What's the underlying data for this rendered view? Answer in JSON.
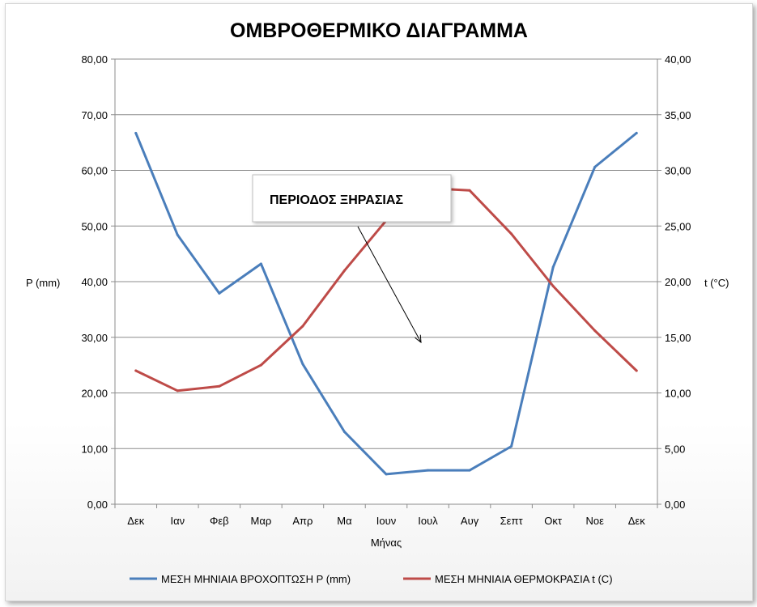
{
  "chart_data": {
    "type": "line",
    "title": "ΟΜΒΡΟΘΕΡΜΙΚΟ ΔΙΑΓΡΑΜΜΑ",
    "xlabel": "Μήνας",
    "ylabel_left": "P (mm)",
    "ylabel_right": "t (°C)",
    "categories": [
      "Δεκ",
      "Ιαν",
      "Φεβ",
      "Μαρ",
      "Απρ",
      "Μα",
      "Ιουν",
      "Ιουλ",
      "Αυγ",
      "Σεπτ",
      "Οκτ",
      "Νοε",
      "Δεκ"
    ],
    "y_left": {
      "min": 0,
      "max": 80,
      "step": 10,
      "tick_labels": [
        "0,00",
        "10,00",
        "20,00",
        "30,00",
        "40,00",
        "50,00",
        "60,00",
        "70,00",
        "80,00"
      ]
    },
    "y_right": {
      "min": 0,
      "max": 40,
      "step": 5,
      "tick_labels": [
        "0,00",
        "5,00",
        "10,00",
        "15,00",
        "20,00",
        "25,00",
        "30,00",
        "35,00",
        "40,00"
      ]
    },
    "grid": true,
    "legend_position": "bottom",
    "series": [
      {
        "name": "ΜΕΣΗ ΜΗΝΙΑΙΑ ΒΡΟΧΟΠΤΩΣΗ P (mm)",
        "axis": "left",
        "color": "#4a7ebb",
        "values": [
          66.7,
          48.4,
          37.9,
          43.2,
          25.2,
          13.0,
          5.4,
          6.1,
          6.1,
          10.4,
          42.6,
          60.6,
          66.7
        ]
      },
      {
        "name": "ΜΕΣΗ ΜΗΝΙΑΙΑ ΘΕΡΜΟΚΡΑΣΙΑ t (C)",
        "axis": "right",
        "color": "#be4b48",
        "values": [
          12.0,
          10.2,
          10.6,
          12.5,
          16.0,
          21.0,
          25.5,
          28.4,
          28.2,
          24.3,
          19.6,
          15.6,
          12.0
        ]
      }
    ],
    "annotation": {
      "text": "ΠΕΡΙΟΔΟΣ ΞΗΡΑΣΙΑΣ"
    }
  }
}
